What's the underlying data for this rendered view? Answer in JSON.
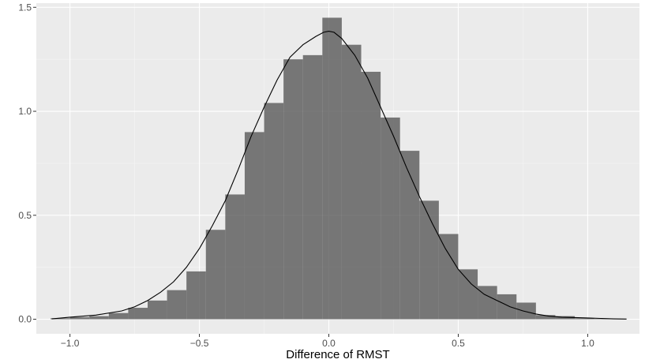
{
  "chart_data": {
    "type": "histogram",
    "xlabel": "Difference of RMST",
    "ylabel": "",
    "xlim": [
      -1.13,
      1.2
    ],
    "ylim": [
      -0.07,
      1.52
    ],
    "x_ticks": [
      -1.0,
      -0.5,
      0.0,
      0.5,
      1.0
    ],
    "x_tick_labels": [
      "−1.0",
      "−0.5",
      "0.0",
      "0.5",
      "1.0"
    ],
    "y_ticks": [
      0.0,
      0.5,
      1.0,
      1.5
    ],
    "y_tick_labels": [
      "0.0",
      "0.5",
      "1.0",
      "1.5"
    ],
    "grid": true,
    "bins": [
      {
        "x0": -1.075,
        "x1": -1.0,
        "value": 0.005
      },
      {
        "x0": -1.0,
        "x1": -0.925,
        "value": 0.01
      },
      {
        "x0": -0.925,
        "x1": -0.85,
        "value": 0.015
      },
      {
        "x0": -0.85,
        "x1": -0.775,
        "value": 0.03
      },
      {
        "x0": -0.775,
        "x1": -0.7,
        "value": 0.055
      },
      {
        "x0": -0.7,
        "x1": -0.625,
        "value": 0.09
      },
      {
        "x0": -0.625,
        "x1": -0.55,
        "value": 0.14
      },
      {
        "x0": -0.55,
        "x1": -0.475,
        "value": 0.23
      },
      {
        "x0": -0.475,
        "x1": -0.4,
        "value": 0.43
      },
      {
        "x0": -0.4,
        "x1": -0.325,
        "value": 0.6
      },
      {
        "x0": -0.325,
        "x1": -0.25,
        "value": 0.9
      },
      {
        "x0": -0.25,
        "x1": -0.175,
        "value": 1.04
      },
      {
        "x0": -0.175,
        "x1": -0.1,
        "value": 1.25
      },
      {
        "x0": -0.1,
        "x1": -0.025,
        "value": 1.27
      },
      {
        "x0": -0.025,
        "x1": 0.05,
        "value": 1.45
      },
      {
        "x0": 0.05,
        "x1": 0.125,
        "value": 1.32
      },
      {
        "x0": 0.125,
        "x1": 0.2,
        "value": 1.19
      },
      {
        "x0": 0.2,
        "x1": 0.275,
        "value": 0.97
      },
      {
        "x0": 0.275,
        "x1": 0.35,
        "value": 0.81
      },
      {
        "x0": 0.35,
        "x1": 0.425,
        "value": 0.57
      },
      {
        "x0": 0.425,
        "x1": 0.5,
        "value": 0.41
      },
      {
        "x0": 0.5,
        "x1": 0.575,
        "value": 0.24
      },
      {
        "x0": 0.575,
        "x1": 0.65,
        "value": 0.16
      },
      {
        "x0": 0.65,
        "x1": 0.725,
        "value": 0.12
      },
      {
        "x0": 0.725,
        "x1": 0.8,
        "value": 0.08
      },
      {
        "x0": 0.8,
        "x1": 0.875,
        "value": 0.02
      },
      {
        "x0": 0.875,
        "x1": 0.95,
        "value": 0.015
      },
      {
        "x0": 0.95,
        "x1": 1.025,
        "value": 0.005
      },
      {
        "x0": 1.025,
        "x1": 1.1,
        "value": 0.002
      },
      {
        "x0": 1.1,
        "x1": 1.15,
        "value": 0.001
      }
    ],
    "density_curve": {
      "x": [
        -1.07,
        -1.0,
        -0.9,
        -0.8,
        -0.75,
        -0.7,
        -0.65,
        -0.6,
        -0.55,
        -0.5,
        -0.45,
        -0.4,
        -0.35,
        -0.3,
        -0.25,
        -0.2,
        -0.15,
        -0.1,
        -0.05,
        -0.02,
        0.0,
        0.02,
        0.05,
        0.1,
        0.15,
        0.2,
        0.25,
        0.3,
        0.35,
        0.4,
        0.45,
        0.5,
        0.55,
        0.6,
        0.65,
        0.7,
        0.75,
        0.8,
        0.85,
        0.9,
        0.95,
        1.0,
        1.05,
        1.1,
        1.15
      ],
      "y": [
        0.002,
        0.01,
        0.02,
        0.04,
        0.06,
        0.09,
        0.13,
        0.18,
        0.25,
        0.34,
        0.45,
        0.57,
        0.72,
        0.88,
        1.02,
        1.15,
        1.26,
        1.32,
        1.36,
        1.38,
        1.385,
        1.38,
        1.35,
        1.27,
        1.16,
        1.02,
        0.88,
        0.73,
        0.59,
        0.46,
        0.34,
        0.24,
        0.17,
        0.12,
        0.09,
        0.06,
        0.04,
        0.025,
        0.015,
        0.01,
        0.008,
        0.006,
        0.004,
        0.002,
        0.001
      ]
    },
    "colors": {
      "panel_background": "#ebebeb",
      "grid_major": "#ffffff",
      "grid_minor": "#f5f5f5",
      "bar_fill": "#595959",
      "bar_opacity": 0.8,
      "curve": "#000000"
    }
  }
}
